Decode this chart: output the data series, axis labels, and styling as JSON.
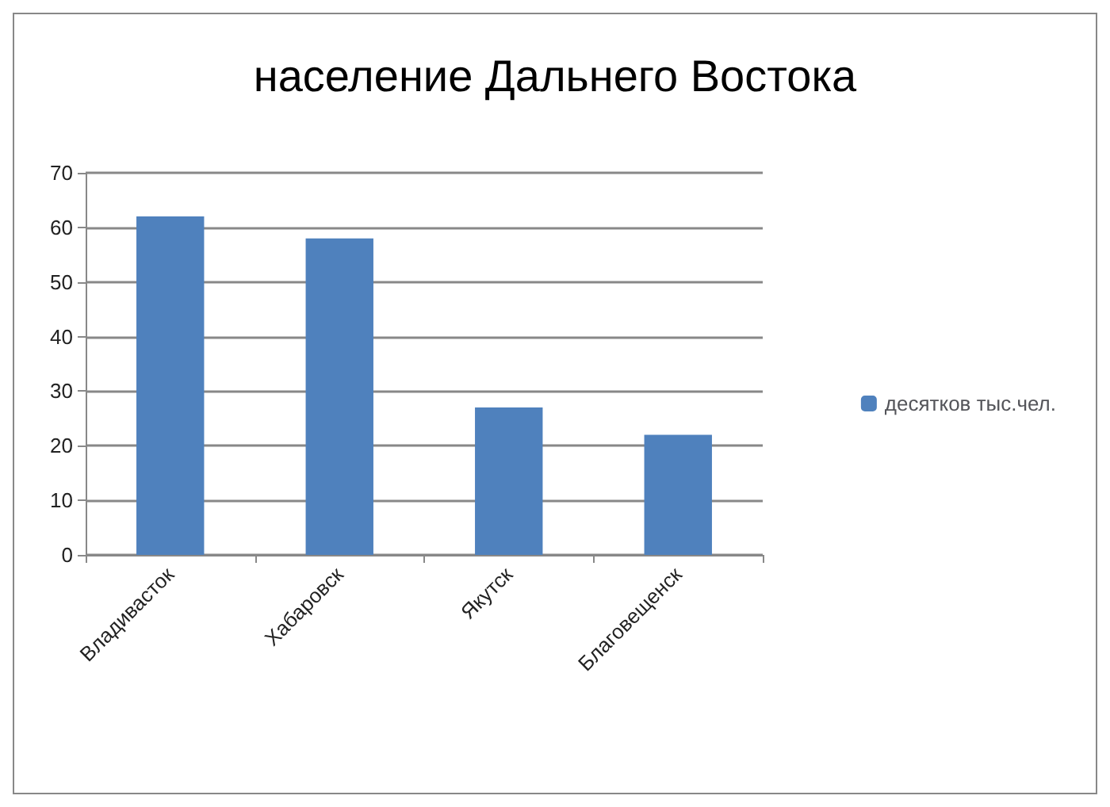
{
  "chart_data": {
    "type": "bar",
    "title": "население Дальнего Востока",
    "categories": [
      "Владивасток",
      "Хабаровск",
      "Якутск",
      "Благовещенск"
    ],
    "series": [
      {
        "name": "десятков тыс.чел.",
        "color": "#4f81bd",
        "values": [
          62,
          58,
          27,
          22
        ]
      }
    ],
    "ylim": [
      0,
      70
    ],
    "yticks": [
      0,
      10,
      20,
      30,
      40,
      50,
      60,
      70
    ],
    "grid": "y",
    "legend": "right"
  }
}
